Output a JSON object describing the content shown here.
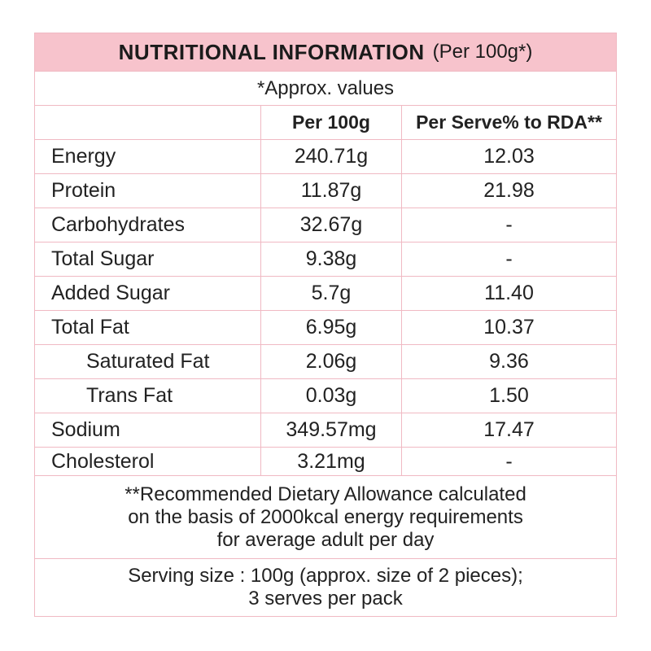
{
  "title": {
    "main": "NUTRITIONAL INFORMATION",
    "sub": "(Per 100g*)"
  },
  "approx_note": "*Approx. values",
  "columns": {
    "nutrient": "",
    "per100": "Per 100g",
    "rda": "Per Serve% to RDA**"
  },
  "rows": [
    {
      "name": "Energy",
      "per100": "240.71g",
      "rda": "12.03"
    },
    {
      "name": "Protein",
      "per100": "11.87g",
      "rda": "21.98"
    },
    {
      "name": "Carbohydrates",
      "per100": "32.67g",
      "rda": "-"
    },
    {
      "name": "Total Sugar",
      "per100": "9.38g",
      "rda": "-"
    },
    {
      "name": "Added Sugar",
      "per100": "5.7g",
      "rda": "11.40"
    },
    {
      "name": "Total Fat",
      "per100": "6.95g",
      "rda": "10.37"
    },
    {
      "name": "Saturated Fat",
      "per100": "2.06g",
      "rda": "9.36"
    },
    {
      "name": "Trans Fat",
      "per100": "0.03g",
      "rda": "1.50"
    },
    {
      "name": "Sodium",
      "per100": "349.57mg",
      "rda": "17.47"
    },
    {
      "name": "Cholesterol",
      "per100": "3.21mg",
      "rda": "-"
    }
  ],
  "rda_note": [
    "**Recommended Dietary Allowance calculated",
    "on the basis of 2000kcal energy requirements",
    "for average adult per day"
  ],
  "serving": [
    "Serving size : 100g (approx. size of 2 pieces);",
    "3 serves per pack"
  ],
  "colors": {
    "header_bg": "#f7c3cc",
    "border": "#f0b9c3",
    "text": "#222222"
  }
}
